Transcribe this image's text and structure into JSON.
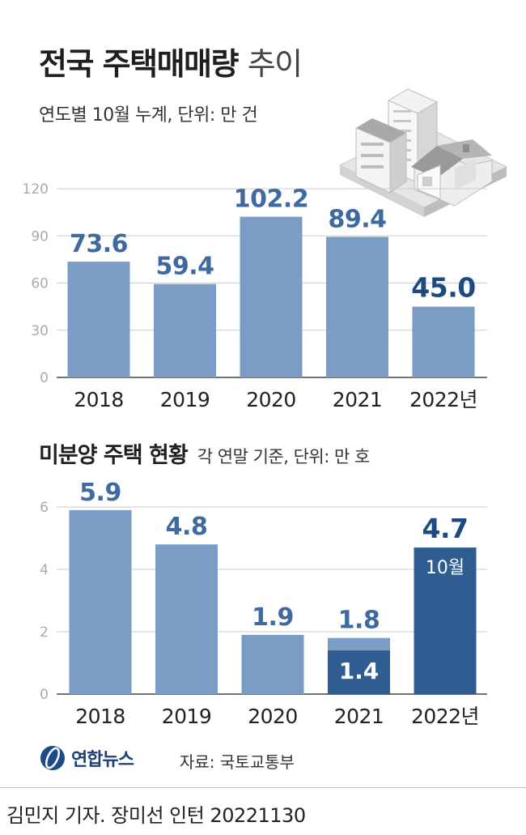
{
  "header": {
    "title_bold": "전국 주택매매량",
    "title_light": "추이",
    "subtitle": "연도별 10월 누계, 단위: 만 건"
  },
  "section2": {
    "title": "미분양 주택 현황",
    "subtitle": "각 연말 기준, 단위: 만 호"
  },
  "colors": {
    "bar_light": "#7b9cc5",
    "bar_dark": "#2f5c91",
    "label_light": "#3f6aa0",
    "label_dark": "#1d4a80",
    "grid": "#cccccc",
    "tick": "#aaaaaa"
  },
  "chart_data": [
    {
      "type": "bar",
      "title": "전국 주택매매량 추이",
      "subtitle": "연도별 10월 누계, 단위: 만 건",
      "categories": [
        "2018",
        "2019",
        "2020",
        "2021",
        "2022년"
      ],
      "values": [
        73.6,
        59.4,
        102.2,
        89.4,
        45.0
      ],
      "value_labels": [
        "73.6",
        "59.4",
        "102.2",
        "89.4",
        "45.0"
      ],
      "highlight_index": 4,
      "yticks": [
        0,
        30,
        60,
        90,
        120
      ],
      "ylim": [
        0,
        120
      ],
      "grid": true
    },
    {
      "type": "bar",
      "title": "미분양 주택 현황",
      "subtitle": "각 연말 기준, 단위: 만 호",
      "categories": [
        "2018",
        "2019",
        "2020",
        "2021",
        "2022년"
      ],
      "values": [
        5.9,
        4.8,
        1.9,
        1.8,
        4.7
      ],
      "value_labels": [
        "5.9",
        "4.8",
        "1.9",
        "1.8",
        "4.7"
      ],
      "highlight_index": 4,
      "sub_segment": {
        "index": 3,
        "value": 1.4,
        "label": "1.4"
      },
      "inner_label": {
        "index": 4,
        "text": "10월"
      },
      "yticks": [
        0,
        2,
        4,
        6
      ],
      "ylim": [
        0,
        6
      ],
      "grid": true
    }
  ],
  "logo": {
    "text": "연합뉴스"
  },
  "source": "자료: 국토교통부",
  "footer": "김민지 기자. 장미선 인턴  20221130"
}
